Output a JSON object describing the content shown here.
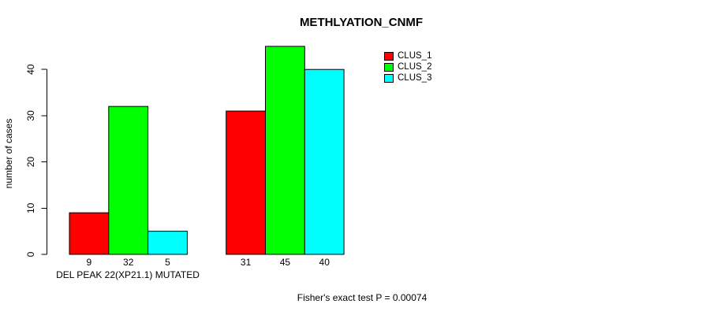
{
  "chart_data": {
    "type": "bar",
    "title": "METHLYATION_CNMF",
    "ylabel": "number of cases",
    "xlabel": "",
    "categories": [
      "DEL PEAK 22(XP21.1) MUTATED",
      ""
    ],
    "series": [
      {
        "name": "CLUS_1",
        "color": "#ff0000",
        "values": [
          9,
          31
        ]
      },
      {
        "name": "CLUS_2",
        "color": "#00ff00",
        "values": [
          32,
          45
        ]
      },
      {
        "name": "CLUS_3",
        "color": "#00ffff",
        "values": [
          5,
          40
        ]
      }
    ],
    "yticks": [
      0,
      10,
      20,
      30,
      40
    ],
    "ylim": [
      0,
      45
    ],
    "grid": false,
    "bar_borders": true,
    "bar_value_labels_shown": true,
    "legend_position": "top-right",
    "annotation": "Fisher's exact test P = 0.00074",
    "axis_color": "#000000",
    "background_color": "#ffffff"
  }
}
